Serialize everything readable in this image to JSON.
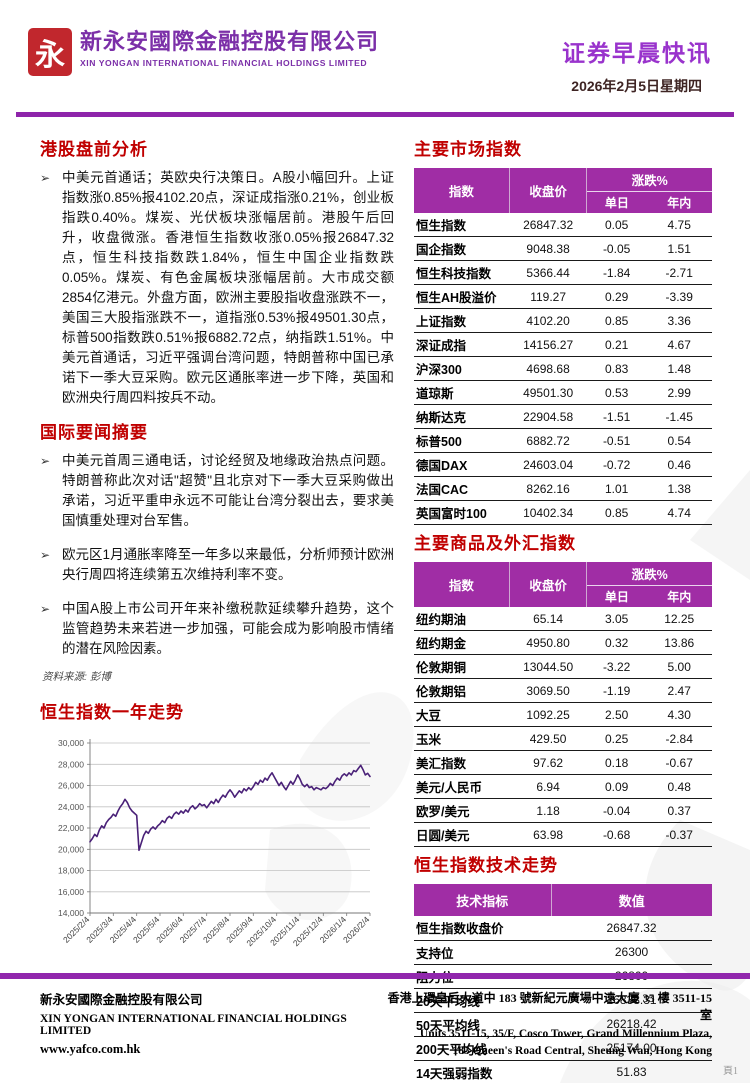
{
  "header": {
    "logo_char": "永",
    "company_cn": "新永安國際金融控股有限公司",
    "company_en": "XIN YONGAN INTERNATIONAL FINANCIAL HOLDINGS LIMITED",
    "title": "证券早晨快讯",
    "date": "2026年2月5日星期四"
  },
  "bullet_icon": "➢",
  "left": {
    "premarket": {
      "heading": "港股盘前分析",
      "bullets": [
        "中美元首通话；英欧央行决策日。A股小幅回升。上证指数涨0.85%报4102.20点，深证成指涨0.21%，创业板指跌0.40%。煤炭、光伏板块涨幅居前。港股午后回升，收盘微涨。香港恒生指数收涨0.05%报26847.32点，恒生科技指数跌1.84%，恒生中国企业指数跌0.05%。煤炭、有色金属板块涨幅居前。大市成交额2854亿港元。外盘方面，欧洲主要股指收盘涨跌不一，美国三大股指涨跌不一，道指涨0.53%报49501.30点，标普500指数跌0.51%报6882.72点，纳指跌1.51%。中美元首通话，习近平强调台湾问题，特朗普称中国已承诺下一季大豆采购。欧元区通胀率进一步下降，英国和欧洲央行周四料按兵不动。"
      ]
    },
    "international": {
      "heading": "国际要闻摘要",
      "bullets": [
        "中美元首周三通电话，讨论经贸及地缘政治热点问题。特朗普称此次对话\"超赞\"且北京对下一季大豆采购做出承诺，习近平重申永远不可能让台湾分裂出去，要求美国慎重处理对台军售。",
        "欧元区1月通胀率降至一年多以来最低，分析师预计欧洲央行周四将连续第五次维持利率不变。",
        "中国A股上市公司开年来补缴税款延续攀升趋势，这个监管趋势未来若进一步加强，可能会成为影响股市情绪的潜在风险因素。"
      ]
    },
    "source_note": "资料来源: 彭博",
    "chart_heading": "恒生指数一年走势"
  },
  "right": {
    "market": {
      "heading": "主要市场指数",
      "col_index": "指数",
      "col_close": "收盘价",
      "col_change": "涨跌%",
      "col_day": "单日",
      "col_ytd": "年内",
      "rows": [
        [
          "恒生指数",
          "26847.32",
          "0.05",
          "4.75"
        ],
        [
          "国企指数",
          "9048.38",
          "-0.05",
          "1.51"
        ],
        [
          "恒生科技指数",
          "5366.44",
          "-1.84",
          "-2.71"
        ],
        [
          "恒生AH股溢价",
          "119.27",
          "0.29",
          "-3.39"
        ],
        [
          "上证指数",
          "4102.20",
          "0.85",
          "3.36"
        ],
        [
          "深证成指",
          "14156.27",
          "0.21",
          "4.67"
        ],
        [
          "沪深300",
          "4698.68",
          "0.83",
          "1.48"
        ],
        [
          "道琼斯",
          "49501.30",
          "0.53",
          "2.99"
        ],
        [
          "纳斯达克",
          "22904.58",
          "-1.51",
          "-1.45"
        ],
        [
          "标普500",
          "6882.72",
          "-0.51",
          "0.54"
        ],
        [
          "德国DAX",
          "24603.04",
          "-0.72",
          "0.46"
        ],
        [
          "法国CAC",
          "8262.16",
          "1.01",
          "1.38"
        ],
        [
          "英国富时100",
          "10402.34",
          "0.85",
          "4.74"
        ]
      ]
    },
    "commodity": {
      "heading": "主要商品及外汇指数",
      "col_index": "指数",
      "col_close": "收盘价",
      "col_change": "涨跌%",
      "col_day": "单日",
      "col_ytd": "年内",
      "rows": [
        [
          "纽约期油",
          "65.14",
          "3.05",
          "12.25"
        ],
        [
          "纽约期金",
          "4950.80",
          "0.32",
          "13.86"
        ],
        [
          "伦敦期铜",
          "13044.50",
          "-3.22",
          "5.00"
        ],
        [
          "伦敦期铝",
          "3069.50",
          "-1.19",
          "2.47"
        ],
        [
          "大豆",
          "1092.25",
          "2.50",
          "4.30"
        ],
        [
          "玉米",
          "429.50",
          "0.25",
          "-2.84"
        ],
        [
          "美汇指数",
          "97.62",
          "0.18",
          "-0.67"
        ],
        [
          "美元/人民币",
          "6.94",
          "0.09",
          "0.48"
        ],
        [
          "欧罗/美元",
          "1.18",
          "-0.04",
          "0.37"
        ],
        [
          "日圆/美元",
          "63.98",
          "-0.68",
          "-0.37"
        ]
      ]
    },
    "technical": {
      "heading": "恒生指数技术走势",
      "col_indicator": "技术指标",
      "col_value": "数值",
      "rows": [
        [
          "恒生指数收盘价",
          "26847.32"
        ],
        [
          "支持位",
          "26300"
        ],
        [
          "阻力位",
          "26800"
        ],
        [
          "20天平均线",
          "26838.31"
        ],
        [
          "50天平均线",
          "26218.42"
        ],
        [
          "200天平均线",
          "25174.00"
        ],
        [
          "14天强弱指数",
          "51.83"
        ]
      ]
    }
  },
  "chart_data": {
    "type": "line",
    "title": "恒生指数一年走势",
    "xlabel": "",
    "ylabel": "",
    "ylim": [
      14000,
      30000
    ],
    "y_tick_step": 2000,
    "y_tick_labels": [
      "14,000",
      "16,000",
      "18,000",
      "20,000",
      "22,000",
      "24,000",
      "26,000",
      "28,000",
      "30,000"
    ],
    "x_labels": [
      "2025/2/4",
      "2025/3/4",
      "2025/4/4",
      "2025/5/4",
      "2025/6/4",
      "2025/7/4",
      "2025/8/4",
      "2025/9/4",
      "2025/10/4",
      "2025/11/4",
      "2025/12/4",
      "2026/1/4",
      "2026/2/4"
    ],
    "line_color": "#4a2178",
    "grid": true,
    "values": [
      20700,
      21000,
      21400,
      21200,
      21800,
      22200,
      22000,
      22500,
      22800,
      23000,
      23300,
      23100,
      23600,
      24000,
      24300,
      24700,
      24400,
      23900,
      23600,
      23400,
      23200,
      19900,
      20600,
      21300,
      21700,
      21500,
      21900,
      22100,
      21900,
      22200,
      22400,
      22700,
      22500,
      22900,
      23100,
      22900,
      23300,
      23500,
      23300,
      23600,
      23400,
      23700,
      23500,
      23900,
      24100,
      23800,
      24000,
      24300,
      24100,
      24200,
      23900,
      24200,
      24500,
      24300,
      24700,
      24400,
      24800,
      25100,
      24900,
      25300,
      25600,
      25300,
      24900,
      25200,
      25500,
      25300,
      25700,
      25500,
      25800,
      25600,
      25900,
      26300,
      26100,
      26500,
      26300,
      26700,
      26500,
      26900,
      27200,
      26800,
      26400,
      26000,
      26300,
      25900,
      25600,
      26000,
      26400,
      26100,
      26500,
      27000,
      26600,
      26100,
      25900,
      26100,
      25800,
      25900,
      25600,
      25800,
      25700,
      25600,
      25800,
      25700,
      25900,
      26200,
      26000,
      26400,
      26700,
      26500,
      26900,
      27100,
      26900,
      27200,
      27000,
      27400,
      27300,
      27600,
      27900,
      27500,
      27000,
      27150,
      26850
    ]
  },
  "footer": {
    "company_cn": "新永安國際金融控股有限公司",
    "company_en": "XIN YONGAN INTERNATIONAL FINANCIAL HOLDINGS LIMITED",
    "url": "www.yafco.com.hk",
    "address_cn": "香港上環皇后大道中 183 號新紀元廣場中遠大廈 35 樓 3511-15 室",
    "address_en_1": "Units 3511-15, 35/F, Cosco Tower, Grand Millennium Plaza,",
    "address_en_2": "183 Queen's Road Central, Sheung Wan, Hong Kong",
    "page_label": "頁1"
  },
  "colors": {
    "accent_red": "#c00000",
    "table_header_purple": "#a02da5",
    "rule_purple": "#8e24aa",
    "brand_purple": "#7b2fa8",
    "title_purple": "#9933cc",
    "logo_red": "#c1272d",
    "chart_line": "#4a2178"
  }
}
